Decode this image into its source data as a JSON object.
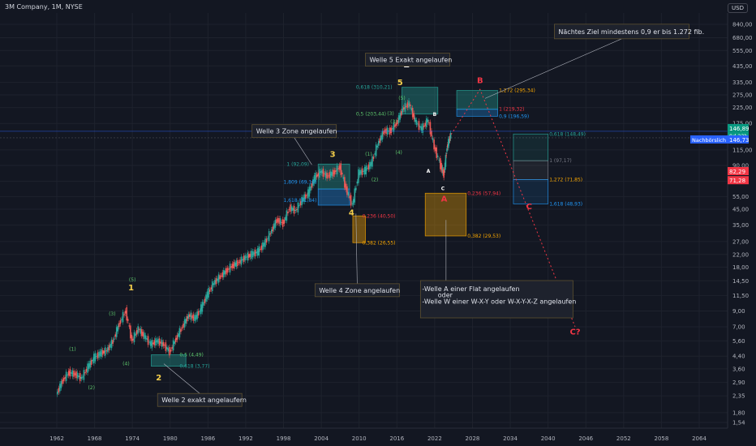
{
  "header": {
    "title": "3M Company, 1M, NYSE",
    "currency": "USD"
  },
  "chart_data": {
    "type": "line",
    "title": "3M Company, 1M, NYSE",
    "xlabel": "",
    "ylabel": "",
    "scale": "log",
    "x_ticks": [
      "1962",
      "1968",
      "1974",
      "1980",
      "1986",
      "1992",
      "1998",
      "2004",
      "2010",
      "2016",
      "2022",
      "2028",
      "2034",
      "2040",
      "2046",
      "2052",
      "2058",
      "2064"
    ],
    "y_ticks": [
      "1,54",
      "1,80",
      "2,35",
      "2,90",
      "3,60",
      "4,40",
      "5,60",
      "7,00",
      "9,00",
      "11,50",
      "14,50",
      "18,00",
      "22,00",
      "27,00",
      "35,00",
      "45,00",
      "55,00",
      "70,00",
      "90,00",
      "115,00",
      "175,00",
      "225,00",
      "275,00",
      "335,00",
      "435,00",
      "555,00",
      "680,00",
      "840,00"
    ],
    "series": [
      {
        "values": [
          [
            1962,
            2.4
          ],
          [
            1963,
            3.0
          ],
          [
            1964,
            3.4
          ],
          [
            1965,
            3.3
          ],
          [
            1966,
            3.1
          ],
          [
            1967,
            3.7
          ],
          [
            1968,
            4.3
          ],
          [
            1969,
            4.6
          ],
          [
            1970,
            4.8
          ],
          [
            1971,
            5.6
          ],
          [
            1972,
            7.4
          ],
          [
            1973,
            9.0
          ],
          [
            1974,
            5.6
          ],
          [
            1975,
            6.8
          ],
          [
            1976,
            6.0
          ],
          [
            1977,
            5.3
          ],
          [
            1978,
            5.6
          ],
          [
            1979,
            5.3
          ],
          [
            1980,
            4.7
          ],
          [
            1981,
            5.8
          ],
          [
            1982,
            7.0
          ],
          [
            1983,
            8.4
          ],
          [
            1984,
            8.0
          ],
          [
            1985,
            9.4
          ],
          [
            1986,
            11.8
          ],
          [
            1987,
            14.0
          ],
          [
            1988,
            15.5
          ],
          [
            1989,
            17.0
          ],
          [
            1990,
            18.5
          ],
          [
            1991,
            19.5
          ],
          [
            1992,
            21.0
          ],
          [
            1993,
            22.0
          ],
          [
            1994,
            23.0
          ],
          [
            1995,
            26.0
          ],
          [
            1996,
            31.0
          ],
          [
            1997,
            38.0
          ],
          [
            1998,
            36.0
          ],
          [
            1999,
            46.0
          ],
          [
            2000,
            44.0
          ],
          [
            2001,
            52.0
          ],
          [
            2002,
            58.0
          ],
          [
            2003,
            74.0
          ],
          [
            2004,
            82.0
          ],
          [
            2005,
            76.0
          ],
          [
            2006,
            80.0
          ],
          [
            2007,
            88.0
          ],
          [
            2008,
            62.0
          ],
          [
            2009,
            48.0
          ],
          [
            2010,
            80.0
          ],
          [
            2011,
            83.0
          ],
          [
            2012,
            93.0
          ],
          [
            2013,
            125.0
          ],
          [
            2014,
            155.0
          ],
          [
            2015,
            155.0
          ],
          [
            2016,
            175.0
          ],
          [
            2017,
            220.0
          ],
          [
            2018,
            240.0
          ],
          [
            2019,
            180.0
          ],
          [
            2020,
            160.0
          ],
          [
            2021,
            185.0
          ],
          [
            2022,
            120.0
          ],
          [
            2023,
            90.0
          ],
          [
            2023.5,
            78.0
          ],
          [
            2024,
            120.0
          ],
          [
            2024.6,
            146.89
          ]
        ]
      }
    ],
    "prices": {
      "last": "146,89",
      "countdown": "9d 22h",
      "alert": "146,73",
      "alert_label": "Nachbörslich",
      "p1": "82,29",
      "p2": "71,28"
    },
    "annotations": [
      {
        "text": "Welle 5 Exakt angelaufen",
        "x": 2011,
        "y": 480
      },
      {
        "text": "Welle 3 Zone angelaufen",
        "x": 1993,
        "y": 155
      },
      {
        "text": "Welle 4 Zone angelaufen",
        "x": 2003,
        "y": 12.5
      },
      {
        "text": "Welle 2 exakt angelaufern",
        "x": 1978,
        "y": 2.2
      },
      {
        "text": "Nächtes Ziel mindestens 0,9 er bis 1.272 fib.",
        "x": 2041,
        "y": 750
      },
      {
        "text": "-Welle A einer Flat angelaufen",
        "x": 2020,
        "y": 12.8
      },
      {
        "text": "oder",
        "x": 2022.5,
        "y": 11.6
      },
      {
        "text": "-Welle W einer W-X-Y oder W-X-Y-X-Z angelaufen",
        "x": 2020,
        "y": 10.5
      }
    ],
    "wave_labels": [
      {
        "text": "1",
        "x": 1973.8,
        "y": 12.5,
        "color": "#f7d04b"
      },
      {
        "text": "2",
        "x": 1978.2,
        "y": 3.0,
        "color": "#f7d04b"
      },
      {
        "text": "3",
        "x": 2005.8,
        "y": 103,
        "color": "#f7d04b"
      },
      {
        "text": "4",
        "x": 2008.8,
        "y": 41,
        "color": "#f7d04b"
      },
      {
        "text": "5",
        "x": 2016.5,
        "y": 320,
        "color": "#f7d04b"
      },
      {
        "text": "1",
        "x": 2017.5,
        "y": 425,
        "color": "#ffffff"
      },
      {
        "text": "(1)",
        "x": 1964.5,
        "y": 4.8,
        "color": "#5cc36a"
      },
      {
        "text": "(2)",
        "x": 1967.5,
        "y": 2.6,
        "color": "#5cc36a"
      },
      {
        "text": "(3)",
        "x": 1970.8,
        "y": 8.4,
        "color": "#5cc36a"
      },
      {
        "text": "(4)",
        "x": 1973.0,
        "y": 3.8,
        "color": "#5cc36a"
      },
      {
        "text": "(5)",
        "x": 1974.0,
        "y": 14.4,
        "color": "#5cc36a"
      },
      {
        "text": "(1)",
        "x": 2011.5,
        "y": 105,
        "color": "#5cc36a"
      },
      {
        "text": "(2)",
        "x": 2012.5,
        "y": 70,
        "color": "#5cc36a"
      },
      {
        "text": "(3)",
        "x": 2015.5,
        "y": 175,
        "color": "#5cc36a"
      },
      {
        "text": "(4)",
        "x": 2016.3,
        "y": 108,
        "color": "#5cc36a"
      },
      {
        "text": "(5)",
        "x": 2016.8,
        "y": 255,
        "color": "#5cc36a"
      },
      {
        "text": "(3)",
        "x": 2015.0,
        "y": 200,
        "color": "#5cc36a"
      },
      {
        "text": "A",
        "x": 2021.0,
        "y": 80,
        "color": "#ffffff"
      },
      {
        "text": "B",
        "x": 2022.0,
        "y": 197,
        "color": "#ffffff"
      },
      {
        "text": "C",
        "x": 2023.3,
        "y": 61,
        "color": "#ffffff"
      },
      {
        "text": "A",
        "x": 2023.5,
        "y": 51,
        "color": "#f23645"
      },
      {
        "text": "B",
        "x": 2029.2,
        "y": 332,
        "color": "#f23645"
      },
      {
        "text": "C",
        "x": 2037.0,
        "y": 45,
        "color": "#f23645"
      },
      {
        "text": "C?",
        "x": 2044.3,
        "y": 6.2,
        "color": "#f23645"
      }
    ],
    "fib_labels": [
      {
        "text": "0,618 (310,21)",
        "x": 2009.5,
        "y": 310,
        "color": "#26a69a"
      },
      {
        "text": "0,5 (203,44)",
        "x": 2009.5,
        "y": 203,
        "color": "#5cc36a"
      },
      {
        "text": "1,272 (295,34)",
        "x": 2032.2,
        "y": 295,
        "color": "#f7a600"
      },
      {
        "text": "1 (219,32)",
        "x": 2032.2,
        "y": 219,
        "color": "#f23645"
      },
      {
        "text": "0,9 (196,59)",
        "x": 2032.2,
        "y": 196,
        "color": "#2196f3"
      },
      {
        "text": "0,618 (148,49)",
        "x": 2040.2,
        "y": 148,
        "color": "#26a69a"
      },
      {
        "text": "1 (97,17)",
        "x": 2040.2,
        "y": 97,
        "color": "#787b86"
      },
      {
        "text": "1,272 (71,85)",
        "x": 2040.2,
        "y": 72,
        "color": "#f7a600"
      },
      {
        "text": "0,236 (57,94)",
        "x": 2027.2,
        "y": 58,
        "color": "#f23645"
      },
      {
        "text": "1,618 (48,93)",
        "x": 2040.2,
        "y": 49,
        "color": "#2196f3"
      },
      {
        "text": "0,382 (29,53)",
        "x": 2027.2,
        "y": 29.5,
        "color": "#f7a600"
      },
      {
        "text": "1 (92,09)",
        "x": 1998.5,
        "y": 92,
        "color": "#26a69a"
      },
      {
        "text": "1,809 (69,10)",
        "x": 1998.0,
        "y": 69,
        "color": "#2196f3"
      },
      {
        "text": "1,618 (51,84)",
        "x": 1998.0,
        "y": 52,
        "color": "#2196f3"
      },
      {
        "text": "0,236 (40,50)",
        "x": 2010.5,
        "y": 40.5,
        "color": "#f23645"
      },
      {
        "text": "0,382 (26,55)",
        "x": 2010.5,
        "y": 26.5,
        "color": "#f7a600"
      },
      {
        "text": "0,5 (4,49)",
        "x": 1981.5,
        "y": 4.5,
        "color": "#5cc36a"
      },
      {
        "text": "0,618 (3,77)",
        "x": 1981.5,
        "y": 3.75,
        "color": "#26a69a"
      }
    ],
    "zones": [
      {
        "x0": 2003.5,
        "x1": 2008.5,
        "y0": 62,
        "y1": 92,
        "color": "#26a69a",
        "opacity": 0.35
      },
      {
        "x0": 2003.5,
        "x1": 2008.5,
        "y0": 48,
        "y1": 62,
        "color": "#2196f3",
        "opacity": 0.35
      },
      {
        "x0": 2009.0,
        "x1": 2011.0,
        "y0": 26.5,
        "y1": 40.5,
        "color": "#f7a600",
        "opacity": 0.4
      },
      {
        "x0": 2016.8,
        "x1": 2022.5,
        "y0": 203,
        "y1": 310,
        "color": "#26a69a",
        "opacity": 0.35
      },
      {
        "x0": 2020.5,
        "x1": 2027.0,
        "y0": 29.5,
        "y1": 58,
        "color": "#f7a600",
        "opacity": 0.35
      },
      {
        "x0": 2025.5,
        "x1": 2032.0,
        "y0": 219,
        "y1": 295,
        "color": "#26a69a",
        "opacity": 0.35
      },
      {
        "x0": 2025.5,
        "x1": 2032.0,
        "y0": 196,
        "y1": 219,
        "color": "#2196f3",
        "opacity": 0.3
      },
      {
        "x0": 2034.5,
        "x1": 2040.0,
        "y0": 97,
        "y1": 148,
        "color": "#26a69a",
        "opacity": 0.12
      },
      {
        "x0": 2034.5,
        "x1": 2040.0,
        "y0": 72,
        "y1": 97,
        "color": "#787b86",
        "opacity": 0.12
      },
      {
        "x0": 2034.5,
        "x1": 2040.0,
        "y0": 49,
        "y1": 72,
        "color": "#2196f3",
        "opacity": 0.12
      },
      {
        "x0": 1977.0,
        "x1": 1982.5,
        "y0": 3.75,
        "y1": 4.5,
        "color": "#26a69a",
        "opacity": 0.35
      }
    ],
    "projection": [
      [
        2024.6,
        146.89
      ],
      [
        2029.2,
        300
      ],
      [
        2044.3,
        7.0
      ]
    ],
    "grid": true,
    "legend": "none"
  }
}
